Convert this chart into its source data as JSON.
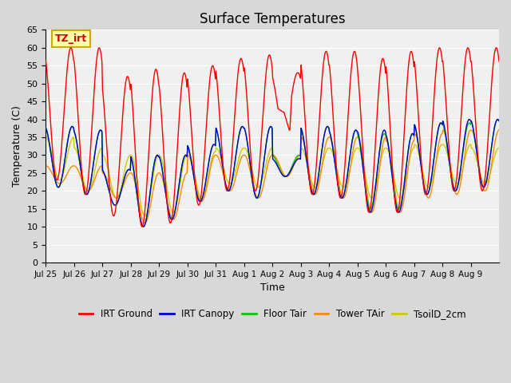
{
  "title": "Surface Temperatures",
  "xlabel": "Time",
  "ylabel": "Temperature (C)",
  "ylim": [
    0,
    65
  ],
  "yticks": [
    0,
    5,
    10,
    15,
    20,
    25,
    30,
    35,
    40,
    45,
    50,
    55,
    60,
    65
  ],
  "fig_bg_color": "#d8d8d8",
  "plot_bg_color": "#f0f0f0",
  "legend_entries": [
    "IRT Ground",
    "IRT Canopy",
    "Floor Tair",
    "Tower TAir",
    "TsoilD_2cm"
  ],
  "legend_colors": [
    "#ff0000",
    "#0000cc",
    "#00cc00",
    "#ff8800",
    "#cccc00"
  ],
  "annotation_text": "TZ_irt",
  "annotation_bg": "#ffffaa",
  "annotation_border": "#ccaa00",
  "annotation_color": "#cc0000",
  "n_days": 16,
  "tick_labels": [
    "Jul 25",
    "Jul 26",
    "Jul 27",
    "Jul 28",
    "Jul 29",
    "Jul 30",
    "Jul 31",
    "Aug 1",
    "Aug 2",
    "Aug 3",
    "Aug 4",
    "Aug 5",
    "Aug 6",
    "Aug 7",
    "Aug 8",
    "Aug 9"
  ],
  "irt_ground_peaks": [
    60,
    60,
    52,
    54,
    53,
    55,
    57,
    58,
    53,
    59,
    59,
    57,
    59,
    60,
    60,
    60
  ],
  "irt_ground_troughs": [
    23,
    19,
    13,
    10,
    11,
    16,
    20,
    20,
    37,
    19,
    18,
    14,
    14,
    19,
    20,
    20
  ],
  "canopy_peaks": [
    38,
    37,
    26,
    30,
    30,
    33,
    38,
    38,
    29,
    38,
    37,
    37,
    36,
    39,
    40,
    40
  ],
  "canopy_troughs": [
    21,
    19,
    16,
    10,
    12,
    17,
    20,
    18,
    24,
    19,
    18,
    14,
    14,
    19,
    20,
    21
  ],
  "floor_peaks": [
    38,
    37,
    26,
    30,
    30,
    33,
    38,
    38,
    30,
    38,
    37,
    36,
    36,
    39,
    39,
    40
  ],
  "floor_troughs": [
    21,
    19,
    16,
    10,
    12,
    17,
    20,
    18,
    24,
    19,
    18,
    15,
    15,
    19,
    20,
    21
  ],
  "tower_peaks": [
    27,
    27,
    25,
    25,
    25,
    30,
    30,
    30,
    30,
    35,
    35,
    35,
    34,
    36,
    37,
    37
  ],
  "tower_troughs": [
    22,
    20,
    18,
    11,
    12,
    17,
    20,
    18,
    24,
    19,
    18,
    14,
    14,
    18,
    19,
    20
  ],
  "soil_peaks": [
    35,
    32,
    30,
    30,
    30,
    31,
    32,
    32,
    30,
    32,
    32,
    32,
    32,
    33,
    33,
    32
  ],
  "soil_troughs": [
    23,
    20,
    18,
    13,
    14,
    18,
    22,
    21,
    24,
    21,
    21,
    18,
    18,
    21,
    22,
    22
  ],
  "points_per_day": 48
}
